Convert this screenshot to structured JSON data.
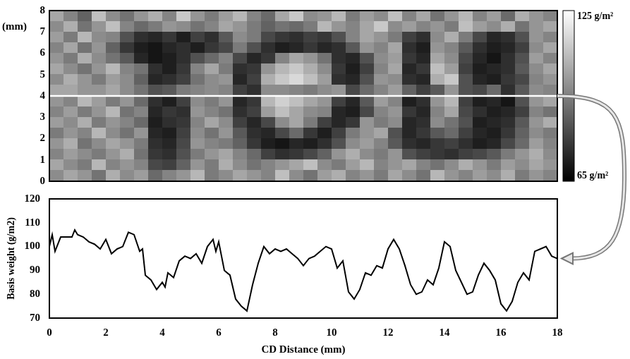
{
  "chart_data": [
    {
      "type": "heatmap",
      "y_label": "(mm)",
      "xlim": [
        0,
        18
      ],
      "ylim": [
        0,
        8
      ],
      "yticks": [
        0,
        1,
        2,
        3,
        4,
        5,
        6,
        7,
        8
      ],
      "tick_labels": "y",
      "grid": false,
      "profile_y": 4,
      "colorbar": {
        "range": [
          65,
          125
        ],
        "ticks": [
          {
            "value": 125,
            "label": "125 g/m²"
          },
          {
            "value": 65,
            "label": "65 g/m²"
          }
        ]
      },
      "cells": [
        [
          104,
          96,
          88,
          110,
          98,
          92,
          100,
          106,
          96,
          112,
          100,
          94,
          102,
          108,
          96,
          90,
          104,
          112,
          98,
          100,
          108,
          94,
          102,
          98,
          110,
          96,
          104,
          92,
          100,
          108,
          96,
          102,
          90,
          106,
          100,
          96
        ],
        [
          98,
          106,
          92,
          100,
          110,
          96,
          90,
          94,
          100,
          98,
          92,
          96,
          104,
          100,
          94,
          88,
          92,
          90,
          94,
          108,
          100,
          96,
          104,
          112,
          98,
          102,
          96,
          100,
          94,
          110,
          102,
          98,
          106,
          92,
          100,
          104
        ],
        [
          102,
          94,
          108,
          98,
          96,
          84,
          76,
          74,
          78,
          72,
          80,
          76,
          86,
          98,
          94,
          82,
          78,
          76,
          80,
          78,
          84,
          96,
          104,
          100,
          94,
          80,
          76,
          98,
          106,
          94,
          82,
          74,
          76,
          84,
          100,
          96
        ],
        [
          96,
          104,
          92,
          100,
          88,
          78,
          72,
          70,
          74,
          76,
          72,
          78,
          82,
          94,
          84,
          76,
          72,
          74,
          78,
          74,
          76,
          86,
          100,
          96,
          104,
          76,
          72,
          100,
          96,
          86,
          76,
          72,
          74,
          80,
          98,
          104
        ],
        [
          100,
          94,
          106,
          98,
          92,
          86,
          74,
          70,
          72,
          76,
          84,
          90,
          96,
          82,
          74,
          78,
          96,
          104,
          100,
          92,
          76,
          74,
          84,
          98,
          102,
          78,
          74,
          104,
          98,
          82,
          74,
          70,
          76,
          84,
          102,
          96
        ],
        [
          104,
          98,
          92,
          100,
          108,
          96,
          92,
          76,
          72,
          78,
          96,
          104,
          94,
          76,
          78,
          100,
          108,
          112,
          106,
          98,
          78,
          72,
          80,
          96,
          104,
          74,
          78,
          110,
          102,
          80,
          72,
          74,
          76,
          86,
          98,
          104
        ],
        [
          98,
          106,
          100,
          94,
          102,
          98,
          88,
          74,
          76,
          80,
          92,
          98,
          100,
          74,
          80,
          106,
          112,
          116,
          110,
          102,
          76,
          74,
          84,
          100,
          98,
          76,
          74,
          106,
          112,
          84,
          74,
          72,
          78,
          82,
          96,
          100
        ],
        [
          104,
          104,
          100,
          100,
          104,
          98,
          92,
          84,
          86,
          94,
          96,
          98,
          96,
          80,
          76,
          98,
          98,
          96,
          94,
          98,
          100,
          82,
          90,
          96,
          102,
          88,
          80,
          86,
          100,
          84,
          82,
          90,
          76,
          86,
          98,
          96
        ],
        [
          100,
          96,
          108,
          102,
          94,
          100,
          90,
          76,
          72,
          80,
          98,
          94,
          100,
          74,
          78,
          108,
          114,
          110,
          104,
          100,
          80,
          74,
          86,
          102,
          96,
          72,
          76,
          100,
          108,
          80,
          72,
          74,
          70,
          84,
          100,
          104
        ],
        [
          96,
          102,
          94,
          100,
          108,
          92,
          96,
          74,
          78,
          76,
          100,
          96,
          92,
          76,
          80,
          102,
          110,
          104,
          98,
          96,
          74,
          72,
          82,
          96,
          100,
          78,
          74,
          96,
          104,
          82,
          76,
          72,
          74,
          80,
          96,
          92
        ],
        [
          102,
          98,
          106,
          94,
          100,
          96,
          90,
          72,
          76,
          78,
          96,
          104,
          98,
          80,
          74,
          82,
          98,
          104,
          94,
          80,
          74,
          78,
          100,
          94,
          98,
          74,
          76,
          98,
          92,
          84,
          72,
          74,
          76,
          86,
          100,
          106
        ],
        [
          94,
          100,
          96,
          108,
          98,
          92,
          100,
          74,
          72,
          80,
          98,
          92,
          100,
          86,
          76,
          74,
          82,
          90,
          78,
          72,
          80,
          94,
          100,
          104,
          84,
          74,
          78,
          86,
          90,
          80,
          74,
          72,
          78,
          88,
          98,
          94
        ],
        [
          100,
          106,
          92,
          98,
          104,
          100,
          94,
          76,
          74,
          82,
          100,
          96,
          94,
          88,
          78,
          72,
          70,
          74,
          72,
          76,
          84,
          98,
          102,
          96,
          86,
          76,
          74,
          78,
          80,
          76,
          72,
          74,
          82,
          90,
          102,
          96
        ],
        [
          96,
          102,
          98,
          94,
          100,
          106,
          92,
          78,
          76,
          84,
          94,
          100,
          104,
          96,
          90,
          80,
          76,
          78,
          82,
          88,
          100,
          106,
          98,
          94,
          100,
          84,
          80,
          78,
          76,
          80,
          82,
          86,
          94,
          100,
          106,
          98
        ],
        [
          104,
          98,
          94,
          108,
          96,
          100,
          96,
          82,
          80,
          88,
          100,
          94,
          106,
          98,
          92,
          96,
          100,
          104,
          110,
          98,
          94,
          102,
          108,
          96,
          100,
          104,
          96,
          92,
          98,
          106,
          100,
          94,
          102,
          98,
          104,
          100
        ],
        [
          98,
          104,
          100,
          92,
          106,
          98,
          102,
          90,
          96,
          100,
          108,
          94,
          98,
          104,
          100,
          96,
          110,
          98,
          92,
          102,
          106,
          96,
          100,
          94,
          104,
          98,
          92,
          108,
          100,
          96,
          102,
          98,
          106,
          94,
          100,
          96
        ]
      ]
    },
    {
      "type": "line",
      "x_label": "CD Distance (mm)",
      "y_label": "Basis weight (g/m2)",
      "color": "#000000",
      "grid": false,
      "xlim": [
        0,
        18
      ],
      "xticks": [
        0,
        2,
        4,
        6,
        8,
        10,
        12,
        14,
        16,
        18
      ],
      "ylim": [
        70,
        120
      ],
      "yticks": [
        70,
        80,
        90,
        100,
        110,
        120
      ],
      "x": [
        0,
        0.1,
        0.2,
        0.4,
        0.6,
        0.8,
        0.9,
        1,
        1.2,
        1.4,
        1.6,
        1.8,
        2,
        2.2,
        2.4,
        2.6,
        2.8,
        3,
        3.2,
        3.3,
        3.4,
        3.6,
        3.8,
        4,
        4.1,
        4.2,
        4.4,
        4.6,
        4.8,
        5,
        5.2,
        5.4,
        5.6,
        5.8,
        5.9,
        6,
        6.2,
        6.4,
        6.6,
        6.8,
        7,
        7.2,
        7.4,
        7.6,
        7.8,
        8,
        8.2,
        8.4,
        8.6,
        8.8,
        9,
        9.2,
        9.4,
        9.6,
        9.8,
        10,
        10.2,
        10.4,
        10.6,
        10.8,
        11,
        11.2,
        11.4,
        11.6,
        11.8,
        12,
        12.2,
        12.4,
        12.6,
        12.8,
        13,
        13.2,
        13.4,
        13.6,
        13.8,
        14,
        14.2,
        14.4,
        14.6,
        14.8,
        15,
        15.2,
        15.4,
        15.6,
        15.8,
        16,
        16.2,
        16.4,
        16.6,
        16.8,
        17,
        17.2,
        17.4,
        17.6,
        17.8,
        18
      ],
      "values": [
        100,
        105,
        98,
        104,
        104,
        104,
        107,
        105,
        104,
        102,
        101,
        99,
        103,
        97,
        99,
        100,
        106,
        105,
        98,
        99,
        88,
        86,
        82,
        85,
        83,
        89,
        87,
        94,
        96,
        95,
        97,
        93,
        100,
        103,
        98,
        102,
        90,
        88,
        78,
        75,
        73,
        84,
        93,
        100,
        97,
        99,
        98,
        99,
        97,
        95,
        92,
        95,
        96,
        98,
        100,
        99,
        91,
        94,
        81,
        78,
        82,
        89,
        88,
        92,
        91,
        99,
        103,
        99,
        92,
        84,
        80,
        81,
        86,
        84,
        91,
        102,
        100,
        90,
        85,
        80,
        81,
        88,
        93,
        90,
        86,
        76,
        73,
        77,
        85,
        89,
        86,
        98,
        99,
        100,
        96,
        95
      ]
    }
  ]
}
